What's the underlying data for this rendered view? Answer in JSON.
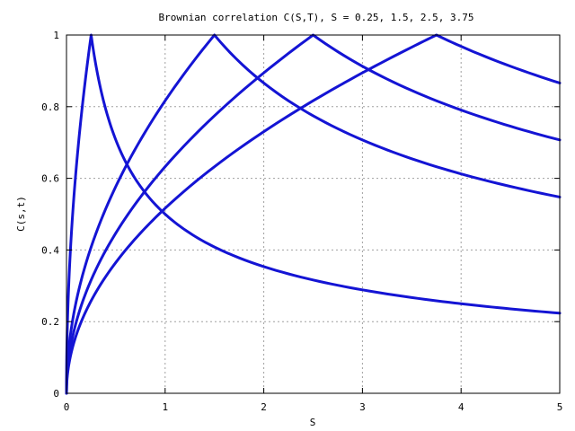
{
  "chart_data": {
    "type": "line",
    "title": "Brownian correlation C(S,T), S = 0.25, 1.5, 2.5, 3.75",
    "xlabel": "S",
    "ylabel": "C(s,t)",
    "xlim": [
      0,
      5
    ],
    "ylim": [
      0,
      1
    ],
    "x_ticks": [
      0,
      1,
      2,
      3,
      4,
      5
    ],
    "x_tick_labels": [
      "0",
      "1",
      "2",
      "3",
      "4",
      "5"
    ],
    "y_ticks": [
      0,
      0.2,
      0.4,
      0.6,
      0.8,
      1
    ],
    "y_tick_labels": [
      "0",
      "0.2",
      "0.4",
      "0.6",
      "0.8",
      "1"
    ],
    "grid": true,
    "legend": "none",
    "line_color": "#1414d4",
    "series": [
      {
        "s": 0.25,
        "x": [
          0,
          0.01,
          0.025,
          0.05,
          0.08,
          0.12,
          0.16,
          0.2,
          0.25,
          0.3,
          0.4,
          0.5,
          0.6,
          0.75,
          1,
          1.25,
          1.5,
          2,
          2.5,
          3,
          3.5,
          4,
          4.5,
          5
        ],
        "y": [
          0,
          0.2,
          0.316,
          0.447,
          0.566,
          0.693,
          0.8,
          0.894,
          1,
          0.913,
          0.791,
          0.707,
          0.645,
          0.577,
          0.5,
          0.447,
          0.408,
          0.354,
          0.316,
          0.289,
          0.267,
          0.25,
          0.236,
          0.224
        ]
      },
      {
        "s": 1.5,
        "x": [
          0,
          0.01,
          0.025,
          0.05,
          0.1,
          0.2,
          0.3,
          0.5,
          0.75,
          1,
          1.25,
          1.5,
          1.75,
          2,
          2.5,
          3,
          3.5,
          4,
          4.5,
          5
        ],
        "y": [
          0,
          0.082,
          0.129,
          0.183,
          0.258,
          0.365,
          0.447,
          0.577,
          0.707,
          0.816,
          0.913,
          1,
          0.926,
          0.866,
          0.775,
          0.707,
          0.655,
          0.612,
          0.577,
          0.548
        ]
      },
      {
        "s": 2.5,
        "x": [
          0,
          0.01,
          0.025,
          0.05,
          0.1,
          0.2,
          0.3,
          0.5,
          0.75,
          1,
          1.5,
          2,
          2.5,
          3,
          3.5,
          4,
          4.5,
          5
        ],
        "y": [
          0,
          0.063,
          0.1,
          0.141,
          0.2,
          0.283,
          0.346,
          0.447,
          0.548,
          0.632,
          0.775,
          0.894,
          1,
          0.913,
          0.845,
          0.791,
          0.745,
          0.707
        ]
      },
      {
        "s": 3.75,
        "x": [
          0,
          0.01,
          0.025,
          0.05,
          0.1,
          0.2,
          0.3,
          0.5,
          0.75,
          1,
          1.5,
          2,
          2.5,
          3,
          3.5,
          3.75,
          4,
          4.5,
          5
        ],
        "y": [
          0,
          0.052,
          0.082,
          0.115,
          0.163,
          0.231,
          0.283,
          0.365,
          0.447,
          0.516,
          0.632,
          0.73,
          0.816,
          0.894,
          0.966,
          1,
          0.968,
          0.913,
          0.866
        ]
      }
    ]
  }
}
